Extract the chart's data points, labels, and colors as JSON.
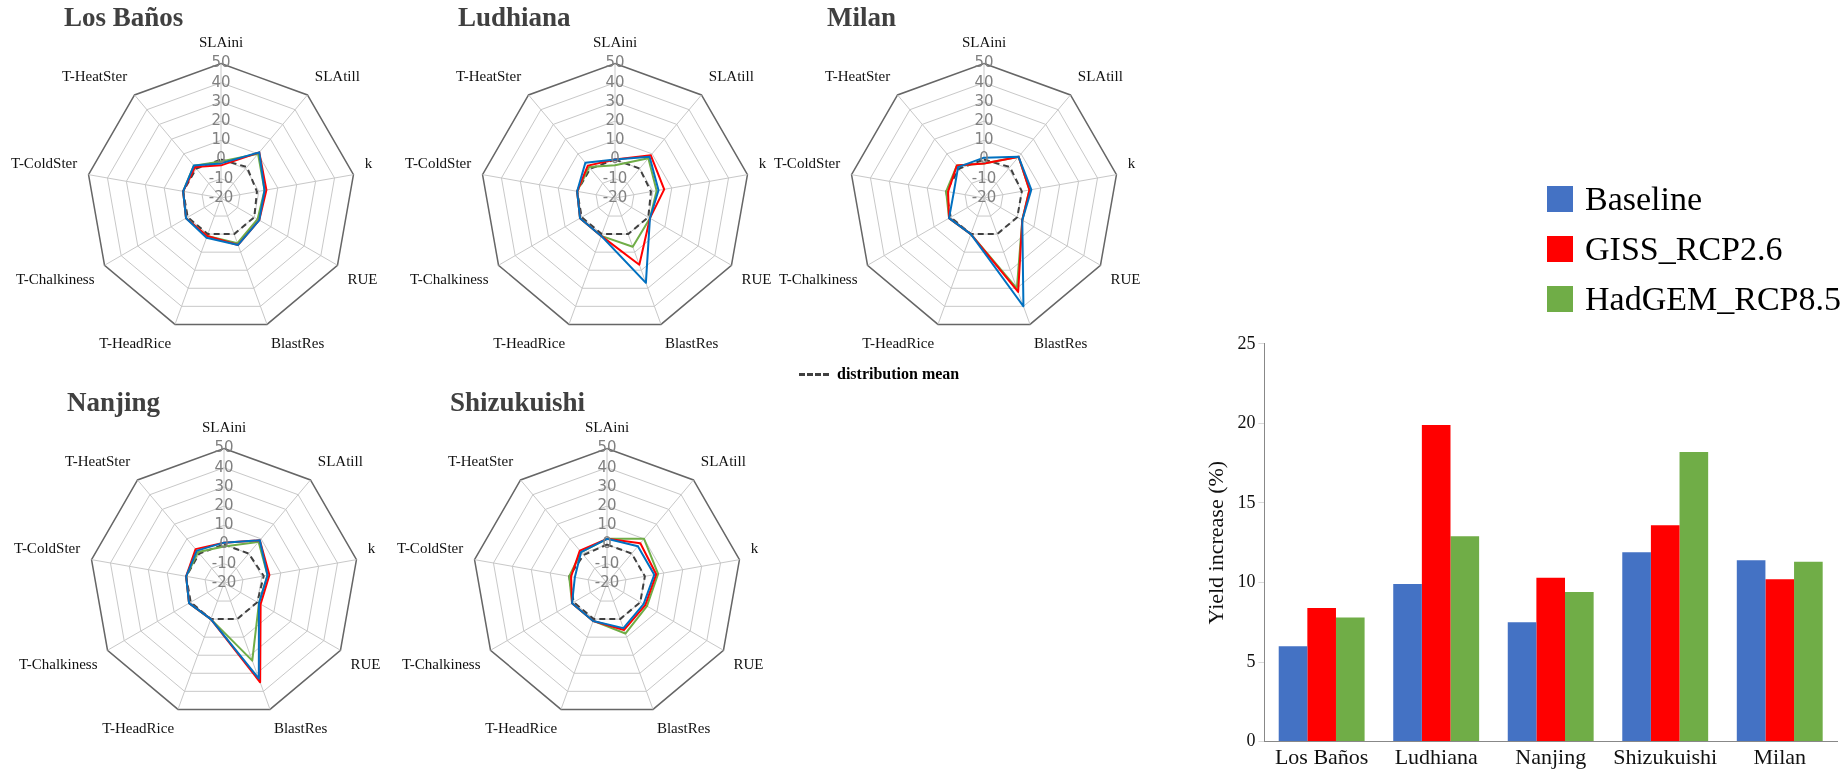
{
  "chart_data": [
    {
      "type": "radar",
      "title": "Los Baños",
      "categories": [
        "SLAini",
        "SLAtill",
        "k",
        "RUE",
        "BlastRes",
        "T-HeadRice",
        "T-Chalkiness",
        "T-ColdSter",
        "T-HeatSter"
      ],
      "ylim": [
        -20,
        50
      ],
      "yticks": [
        -20,
        -10,
        0,
        10,
        20,
        30,
        40,
        50
      ],
      "grid": true,
      "marker": "none",
      "series": [
        {
          "color": "#0070c0",
          "values": [
            -2,
            11,
            3,
            3,
            6,
            2,
            1,
            0,
            2
          ]
        },
        {
          "color": "#ff0000",
          "values": [
            -3,
            11,
            4,
            3,
            6,
            1,
            1,
            0,
            1
          ]
        },
        {
          "color": "#70ad47",
          "values": [
            -1,
            10,
            3,
            2,
            5,
            1,
            1,
            0,
            2
          ]
        },
        {
          "color": "#404040",
          "line_style": "dashed",
          "values": [
            0,
            1,
            -1,
            0,
            0,
            0,
            0,
            0,
            0
          ]
        }
      ]
    },
    {
      "type": "radar",
      "title": "Ludhiana",
      "categories": [
        "SLAini",
        "SLAtill",
        "k",
        "RUE",
        "BlastRes",
        "T-HeadRice",
        "T-Chalkiness",
        "T-ColdSter",
        "T-HeatSter"
      ],
      "ylim": [
        -20,
        50
      ],
      "yticks": [
        -20,
        -10,
        0,
        10,
        20,
        30,
        40,
        50
      ],
      "grid": true,
      "marker": "none",
      "series": [
        {
          "color": "#0070c0",
          "values": [
            0,
            8,
            3,
            1,
            27,
            1,
            1,
            0,
            4
          ]
        },
        {
          "color": "#ff0000",
          "values": [
            0,
            9,
            6,
            1,
            17,
            1,
            1,
            0,
            2
          ]
        },
        {
          "color": "#70ad47",
          "values": [
            -3,
            7,
            2,
            1,
            7,
            1,
            1,
            0,
            1
          ]
        },
        {
          "color": "#404040",
          "line_style": "dashed",
          "values": [
            0,
            0,
            -1,
            0,
            0,
            0,
            0,
            0,
            0
          ]
        }
      ]
    },
    {
      "type": "radar",
      "title": "Milan",
      "categories": [
        "SLAini",
        "SLAtill",
        "k",
        "RUE",
        "BlastRes",
        "T-HeadRice",
        "T-Chalkiness",
        "T-ColdSter",
        "T-HeatSter"
      ],
      "ylim": [
        -20,
        50
      ],
      "yticks": [
        -20,
        -10,
        0,
        10,
        20,
        30,
        40,
        50
      ],
      "grid": true,
      "marker": "none",
      "legend": "bottom left",
      "series": [
        {
          "color": "#0070c0",
          "values": [
            1,
            8,
            5,
            3,
            40,
            0,
            1,
            -4,
            1
          ]
        },
        {
          "color": "#ff0000",
          "values": [
            -2,
            8,
            4,
            3,
            32,
            0,
            1,
            -1,
            2
          ]
        },
        {
          "color": "#70ad47",
          "values": [
            -2,
            8,
            4,
            3,
            30,
            0,
            1,
            0,
            2
          ]
        },
        {
          "name": "distribution mean",
          "color": "#404040",
          "line_style": "dashed",
          "values": [
            0,
            1,
            0,
            0,
            0,
            0,
            0,
            0,
            0
          ]
        }
      ]
    },
    {
      "type": "radar",
      "title": "Nanjing",
      "categories": [
        "SLAini",
        "SLAtill",
        "k",
        "RUE",
        "BlastRes",
        "T-HeadRice",
        "T-Chalkiness",
        "T-ColdSter",
        "T-HeatSter"
      ],
      "ylim": [
        -20,
        50
      ],
      "yticks": [
        -20,
        -10,
        0,
        10,
        20,
        30,
        40,
        50
      ],
      "grid": true,
      "marker": "none",
      "series": [
        {
          "color": "#0070c0",
          "values": [
            1,
            9,
            3,
            1,
            33,
            0,
            1,
            0,
            2
          ]
        },
        {
          "color": "#ff0000",
          "values": [
            1,
            9,
            4,
            2,
            35,
            0,
            1,
            0,
            3
          ]
        },
        {
          "color": "#70ad47",
          "values": [
            -1,
            8,
            3,
            1,
            23,
            0,
            1,
            0,
            1
          ]
        },
        {
          "color": "#404040",
          "line_style": "dashed",
          "values": [
            0,
            0,
            1,
            0,
            0,
            0,
            0,
            0,
            0
          ]
        }
      ]
    },
    {
      "type": "radar",
      "title": "Shizukuishi",
      "categories": [
        "SLAini",
        "SLAtill",
        "k",
        "RUE",
        "BlastRes",
        "T-HeadRice",
        "T-Chalkiness",
        "T-ColdSter",
        "T-HeatSter"
      ],
      "ylim": [
        -20,
        50
      ],
      "yticks": [
        -20,
        -10,
        0,
        10,
        20,
        30,
        40,
        50
      ],
      "grid": true,
      "marker": "none",
      "series": [
        {
          "color": "#0070c0",
          "values": [
            3,
            5,
            5,
            2,
            5,
            1,
            1,
            -3,
            1
          ]
        },
        {
          "color": "#ff0000",
          "values": [
            3,
            7,
            6,
            3,
            6,
            1,
            1,
            -1,
            2
          ]
        },
        {
          "color": "#70ad47",
          "values": [
            3,
            10,
            7,
            4,
            8,
            1,
            1,
            0,
            1
          ]
        },
        {
          "color": "#404040",
          "line_style": "dashed",
          "values": [
            0,
            0,
            0,
            0,
            0,
            0,
            0,
            0,
            -1
          ]
        }
      ]
    },
    {
      "type": "bar",
      "categories": [
        "Los Baños",
        "Ludhiana",
        "Nanjing",
        "Shizukuishi",
        "Milan"
      ],
      "ylabel": "Yield increase (%)",
      "ylim": [
        0,
        25
      ],
      "yticks": [
        0,
        5,
        10,
        15,
        20,
        25
      ],
      "grid": false,
      "legend": "top right",
      "series": [
        {
          "name": "Baseline",
          "color": "#4472c4",
          "values": [
            6.0,
            9.9,
            7.5,
            11.9,
            11.4
          ]
        },
        {
          "name": "GISS_RCP2.6",
          "color": "#ff0000",
          "values": [
            8.4,
            19.9,
            10.3,
            13.6,
            10.2
          ]
        },
        {
          "name": "HadGEM_RCP8.5",
          "color": "#70ad47",
          "values": [
            7.8,
            12.9,
            9.4,
            18.2,
            11.3
          ]
        }
      ]
    }
  ]
}
